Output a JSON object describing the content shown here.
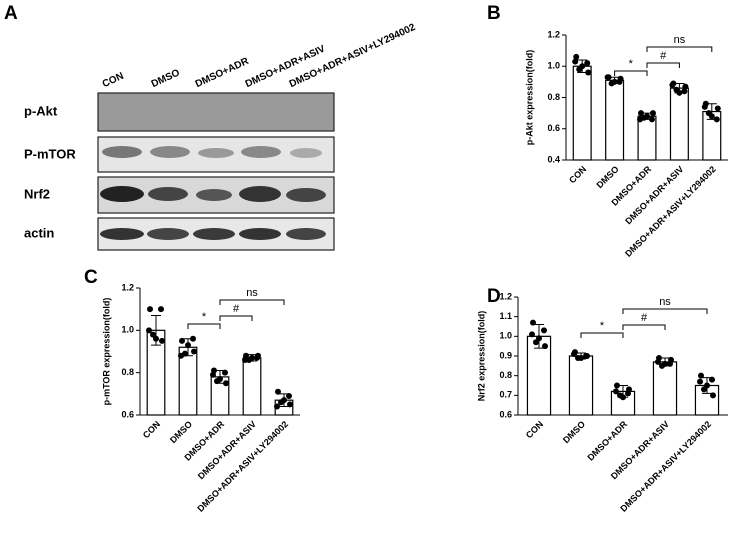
{
  "blot": {
    "panel_label": "A",
    "lanes": [
      "CON",
      "DMSO",
      "DMSO+ADR",
      "DMSO+ADR+ASIV",
      "DMSO+ADR+ASIV+LY294002"
    ],
    "rows": [
      "p-Akt",
      "P-mTOR",
      "Nrf2",
      "actin"
    ]
  },
  "chart_data": [
    {
      "type": "bar",
      "panel_label": "B",
      "y_label": "p-Akt expression(fold)",
      "categories": [
        "CON",
        "DMSO",
        "DMSO+ADR",
        "DMSO+ADR+ASIV",
        "DMSO+ADR+ASIV+LY294002"
      ],
      "values": [
        1.0,
        0.91,
        0.68,
        0.86,
        0.71
      ],
      "errors": [
        0.04,
        0.02,
        0.02,
        0.03,
        0.05
      ],
      "points": [
        [
          1.06,
          1.02,
          0.98,
          0.96,
          1.0,
          1.03
        ],
        [
          0.93,
          0.9,
          0.89,
          0.92,
          0.9,
          0.93
        ],
        [
          0.7,
          0.66,
          0.67,
          0.7,
          0.68,
          0.66
        ],
        [
          0.89,
          0.84,
          0.85,
          0.87,
          0.83,
          0.88
        ],
        [
          0.76,
          0.66,
          0.7,
          0.73,
          0.68,
          0.74
        ]
      ],
      "ylim": [
        0.4,
        1.2
      ],
      "yticks": [
        0.4,
        0.6,
        0.8,
        {
          "value": 1,
          "label": "1.0"
        },
        1.2
      ],
      "significance": [
        "*",
        "#",
        "ns"
      ],
      "color": "#ffffff"
    },
    {
      "type": "bar",
      "panel_label": "C",
      "y_label": "p-mTOR expression(fold)",
      "categories": [
        "CON",
        "DMSO",
        "DMSO+ADR",
        "DMSO+ADR+ASIV",
        "DMSO+ADR+ASIV+LY294002"
      ],
      "values": [
        1.0,
        0.92,
        0.78,
        0.87,
        0.67
      ],
      "errors": [
        0.07,
        0.04,
        0.03,
        0.015,
        0.03
      ],
      "points": [
        [
          1.1,
          1.1,
          0.98,
          0.95,
          0.96,
          1.0
        ],
        [
          0.95,
          0.96,
          0.89,
          0.9,
          0.93,
          0.88
        ],
        [
          0.81,
          0.8,
          0.76,
          0.75,
          0.77,
          0.79
        ],
        [
          0.88,
          0.87,
          0.86,
          0.88,
          0.87,
          0.86
        ],
        [
          0.71,
          0.69,
          0.66,
          0.65,
          0.67,
          0.64
        ]
      ],
      "ylim": [
        0.6,
        1.2
      ],
      "yticks": [
        0.6,
        0.8,
        {
          "value": 1,
          "label": "1.0"
        },
        1.2
      ],
      "significance": [
        "*",
        "#",
        "ns"
      ],
      "color": "#ffffff"
    },
    {
      "type": "bar",
      "panel_label": "D",
      "y_label": "Nrf2 expression(fold)",
      "categories": [
        "CON",
        "DMSO",
        "DMSO+ADR",
        "DMSO+ADR+ASIV",
        "DMSO+ADR+ASIV+LY294002"
      ],
      "values": [
        1.0,
        0.9,
        0.72,
        0.87,
        0.75
      ],
      "errors": [
        0.06,
        0.015,
        0.03,
        0.02,
        0.04
      ],
      "points": [
        [
          1.07,
          1.03,
          0.97,
          0.95,
          0.99,
          1.01
        ],
        [
          0.92,
          0.9,
          0.89,
          0.9,
          0.89,
          0.91
        ],
        [
          0.75,
          0.71,
          0.7,
          0.73,
          0.69,
          0.72
        ],
        [
          0.89,
          0.86,
          0.85,
          0.88,
          0.86,
          0.87
        ],
        [
          0.8,
          0.78,
          0.73,
          0.7,
          0.75,
          0.77
        ]
      ],
      "ylim": [
        0.6,
        1.2
      ],
      "yticks": [
        0.6,
        0.7,
        0.8,
        0.9,
        {
          "value": 1,
          "label": "1.0"
        },
        1.1,
        1.2
      ],
      "significance": [
        "*",
        "#",
        "ns"
      ],
      "color": "#ffffff"
    }
  ]
}
